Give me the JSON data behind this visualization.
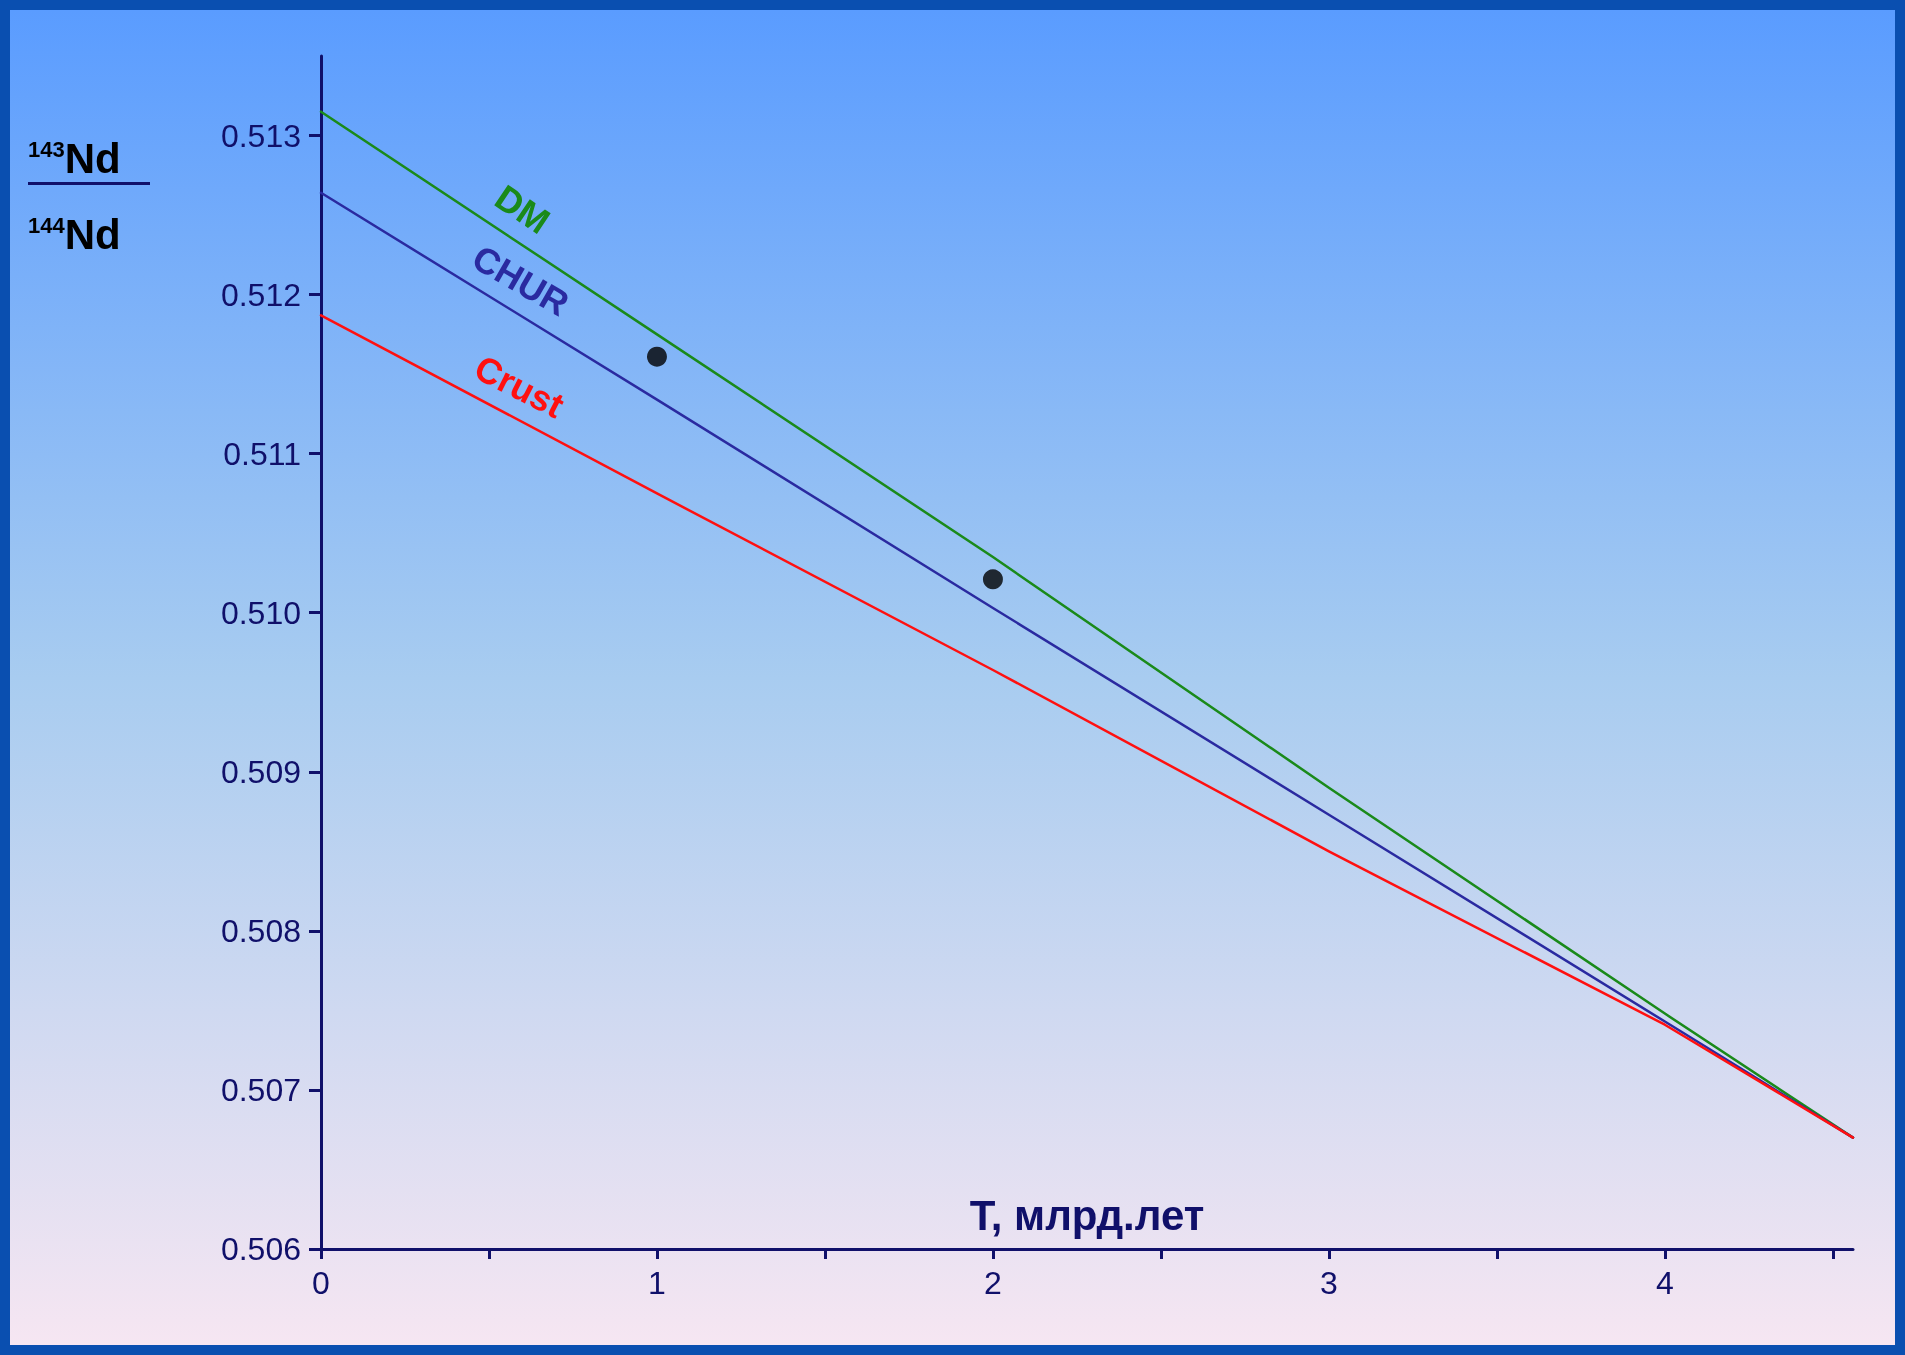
{
  "chart_data": {
    "type": "line",
    "xlabel": "T, млрд.лет",
    "ylabel": "$^{143}$Nd $^{144}$Nd",
    "x": [
      0,
      1,
      2,
      3,
      4,
      4.56
    ],
    "series": [
      {
        "name": "DM",
        "color": "#1a8a1a",
        "values": [
          0.51315,
          0.51175,
          0.51035,
          0.5089,
          0.50748,
          0.5067
        ]
      },
      {
        "name": "CHUR",
        "color": "#2a2aa0",
        "values": [
          0.51264,
          0.51134,
          0.51003,
          0.50873,
          0.50743,
          0.5067
        ]
      },
      {
        "name": "Crust",
        "color": "#ff1010",
        "values": [
          0.51187,
          0.51075,
          0.50964,
          0.5085,
          0.50741,
          0.5067
        ]
      },
      {
        "type": "scatter",
        "color": "#000000",
        "x": [
          1,
          2
        ],
        "values": [
          0.51161,
          0.51021
        ]
      }
    ],
    "xlim": [
      0,
      4.56
    ],
    "xticks": [
      0,
      {
        "value": 0.5,
        "label": null
      },
      1,
      {
        "value": 1.5,
        "label": null
      },
      2,
      {
        "value": 2.5,
        "label": null
      },
      3,
      {
        "value": 3.5,
        "label": null
      },
      4,
      {
        "value": 4.5,
        "label": null
      }
    ],
    "ylim": [
      0.506,
      0.5135
    ],
    "yticks": [
      {
        "value": 0.506,
        "label": "0.506"
      },
      {
        "value": 0.507,
        "label": "0.507"
      },
      {
        "value": 0.508,
        "label": "0.508"
      },
      {
        "value": 0.509,
        "label": "0.509"
      },
      {
        "value": 0.51,
        "label": "0.510"
      },
      {
        "value": 0.511,
        "label": "0.511"
      },
      {
        "value": 0.512,
        "label": "0.512"
      },
      {
        "value": 0.513,
        "label": "0.513"
      }
    ],
    "grid": false,
    "legend": false,
    "line_style": "solid"
  }
}
